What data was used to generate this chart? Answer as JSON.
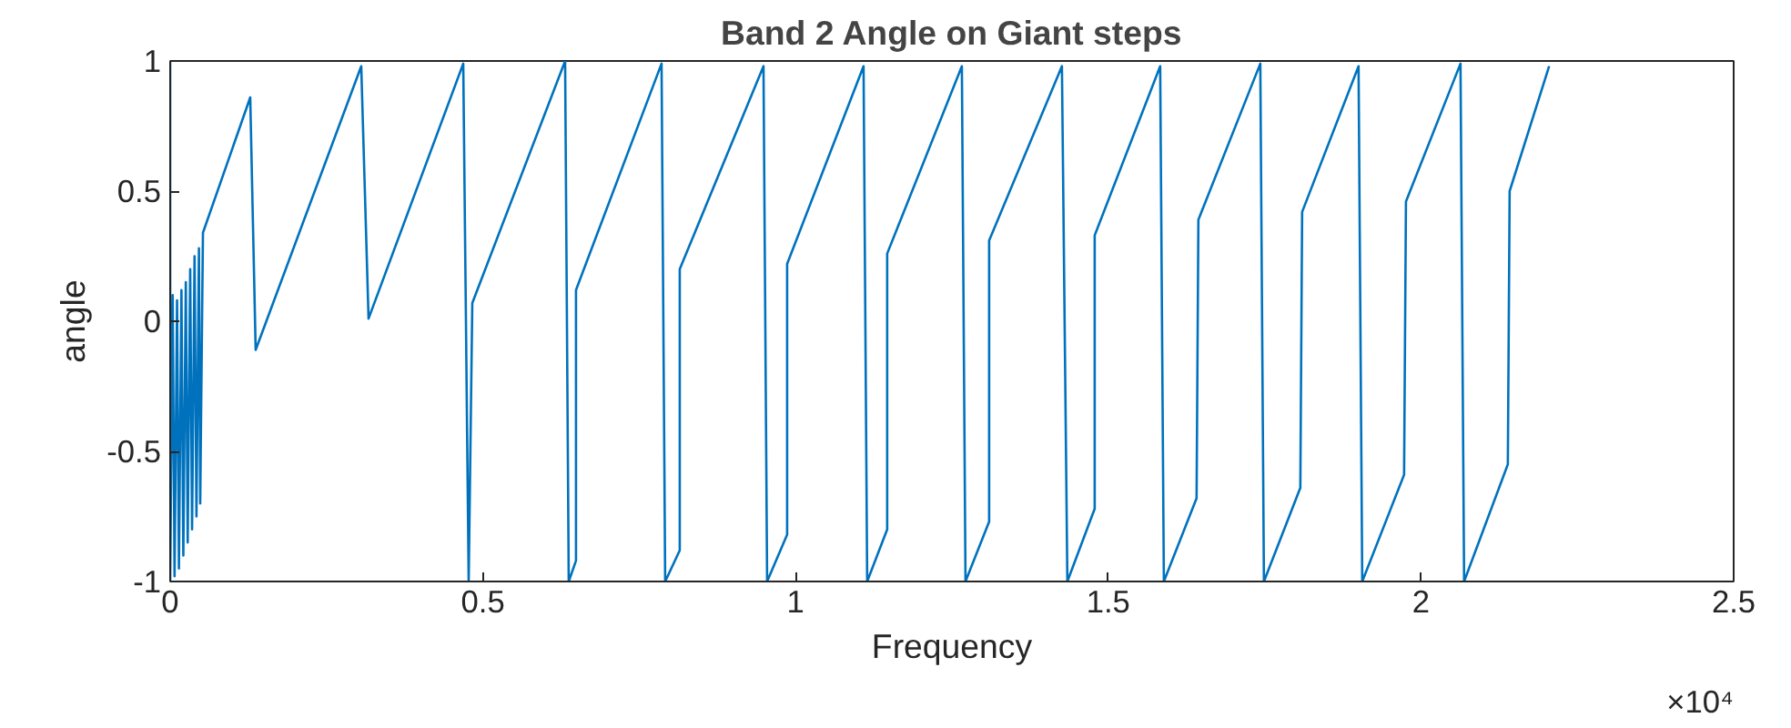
{
  "chart_data": {
    "type": "line",
    "title": "Band 2 Angle on Giant steps",
    "xlabel": "Frequency",
    "ylabel": "angle",
    "annotations": [
      "×10⁴"
    ],
    "xlim": [
      0,
      2.5
    ],
    "ylim": [
      -1,
      1
    ],
    "xticks": [
      0,
      0.5,
      1,
      1.5,
      2,
      2.5
    ],
    "yticks": [
      -1,
      -0.5,
      0,
      0.5,
      1
    ],
    "grid": false,
    "marker": "none",
    "line_style": "solid",
    "series": [
      {
        "color": "#0072bd",
        "x": [
          0,
          0,
          0.004,
          0.007,
          0.011,
          0.014,
          0.018,
          0.021,
          0.025,
          0.028,
          0.032,
          0.035,
          0.039,
          0.042,
          0.046,
          0.048,
          0.0524,
          0.128,
          0.1367,
          0.3055,
          0.3172,
          0.4686,
          0.4773,
          0.4831,
          0.6315,
          0.6373,
          0.6489,
          0.6489,
          0.7857,
          0.7915,
          0.8148,
          0.8148,
          0.9487,
          0.9545,
          0.9865,
          0.9865,
          1.1087,
          1.1145,
          1.1465,
          1.1465,
          1.2659,
          1.2717,
          1.3095,
          1.3095,
          1.4259,
          1.4346,
          1.4783,
          1.4783,
          1.583,
          1.5889,
          1.6412,
          1.6441,
          1.7431,
          1.7489,
          1.8071,
          1.81,
          1.9002,
          1.9061,
          1.973,
          1.976,
          2.0632,
          2.069,
          2.1389,
          2.1418,
          2.205
        ],
        "values": [
          1,
          -1,
          0.1,
          -0.98,
          0.08,
          -0.95,
          0.12,
          -0.9,
          0.15,
          -0.85,
          0.2,
          -0.8,
          0.25,
          -0.75,
          0.28,
          -0.7,
          0.34,
          0.86,
          -0.11,
          0.98,
          0.01,
          0.99,
          -1,
          0.07,
          1,
          -1,
          -0.92,
          0.12,
          0.99,
          -1,
          -0.88,
          0.2,
          0.98,
          -1,
          -0.82,
          0.22,
          0.98,
          -1,
          -0.8,
          0.26,
          0.98,
          -1,
          -0.77,
          0.31,
          0.98,
          -1,
          -0.72,
          0.33,
          0.98,
          -1,
          -0.68,
          0.39,
          0.99,
          -1,
          -0.64,
          0.42,
          0.98,
          -1,
          -0.59,
          0.46,
          0.99,
          -1,
          -0.55,
          0.5,
          0.98
        ]
      }
    ]
  }
}
